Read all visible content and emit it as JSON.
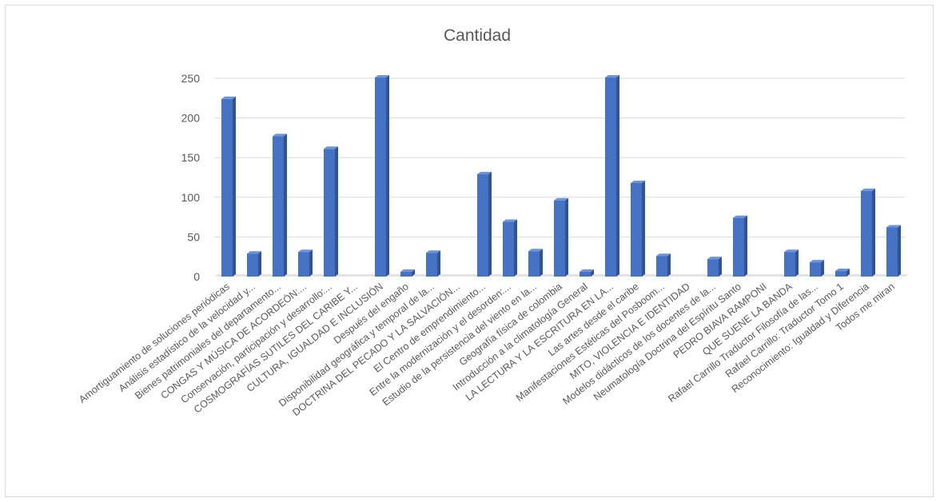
{
  "chart_data": {
    "type": "bar",
    "title": "Cantidad",
    "xlabel": "",
    "ylabel": "",
    "ylim": [
      0,
      250
    ],
    "yticks": [
      0,
      50,
      100,
      150,
      200,
      250
    ],
    "grid": true,
    "legend": "none",
    "bar_color": "#4472c4",
    "categories": [
      "Amortiguamiento de soluciones periódicas",
      "Análisis estadístico de la velocidad y...",
      "Bienes patrimoniales del departamento...",
      "CONGAS Y MÚSICA DE ACORDEÓN:...",
      "Conservación, participación y desarrollo:...",
      "COSMOGRAFÍAS SUTILES DEL CARIBE Y...",
      "CULTURA, IGUALDAD E INCLUSIÓN",
      "Después del engaño",
      "Disponibilidad geográfica y temporal de la...",
      "DOCTRINA DEL PECADO Y LA SALVACIÓN...",
      "El Centro de emprendimiento...",
      "Entre la modernización y el desorden:...",
      "Estudio de la persistencia del viento en la...",
      "Geografía física de colombia",
      "Introducción a la climatología General",
      "LA LECTURA Y LA ESCRITURA EN LA...",
      "Las artes desde el caribe",
      "Manifestaciones Estéticas del Posboom...",
      "MITO, VIOLENCIA E IDENTIDAD",
      "Modelos didácticos de los docentes de la...",
      "Neumatología Doctrina del Espíritu Santo",
      "PEDRO BIAVA RAMPONI",
      "QUE SUENE LA BANDA",
      "Rafael Carrillo Traductor Filosofía de las...",
      "Rafael Carrillo: Traductor Tomo 1",
      "Reconocimiento: Igualdad y Diferencia",
      "Todos me miran"
    ],
    "values": [
      224,
      29,
      177,
      31,
      161,
      0,
      251,
      6,
      30,
      0,
      129,
      69,
      32,
      96,
      6,
      251,
      118,
      26,
      0,
      22,
      74,
      0,
      31,
      18,
      7,
      108,
      62
    ]
  }
}
